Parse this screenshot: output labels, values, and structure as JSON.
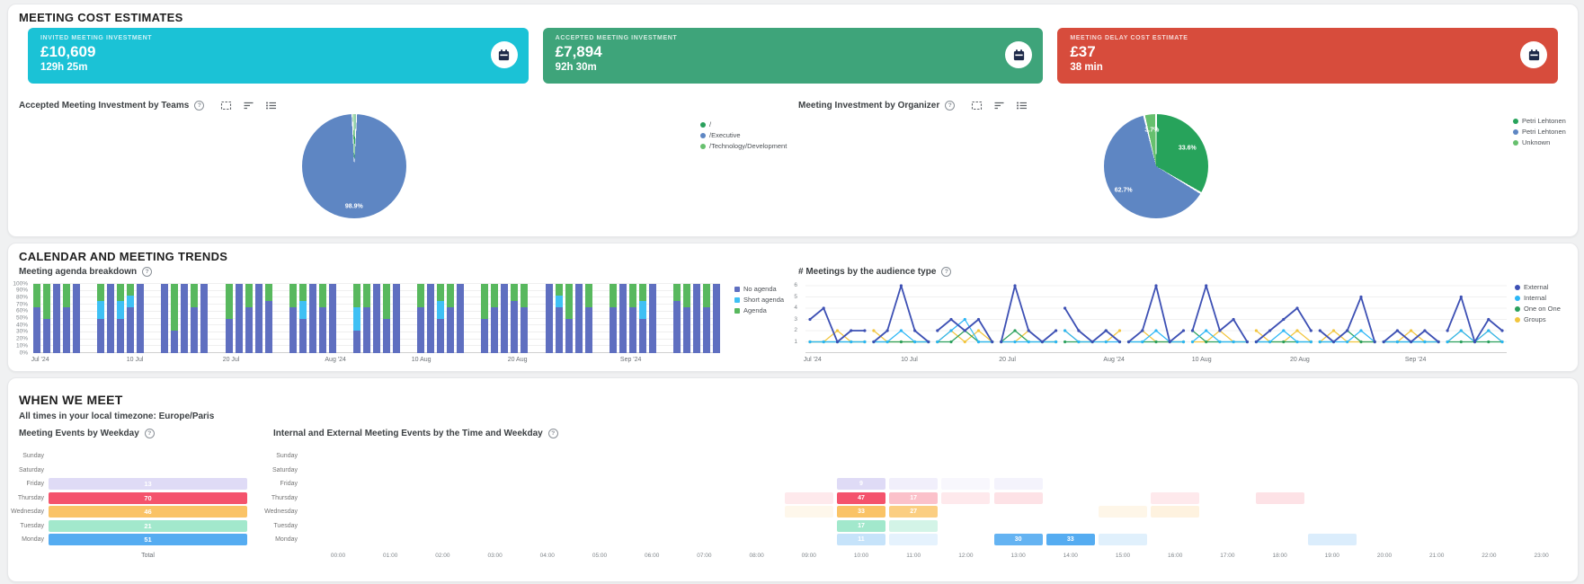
{
  "icons": {
    "help": "?"
  },
  "cost_section": {
    "title": "MEETING COST ESTIMATES",
    "cards": [
      {
        "label": "INVITED MEETING INVESTMENT",
        "value": "£10,609",
        "duration": "129h 25m",
        "color": "#1BC2D6",
        "icon": "calendar-icon"
      },
      {
        "label": "ACCEPTED MEETING INVESTMENT",
        "value": "£7,894",
        "duration": "92h 30m",
        "color": "#3EA47A",
        "icon": "calendar-icon"
      },
      {
        "label": "MEETING DELAY COST ESTIMATE",
        "value": "£37",
        "duration": "38 min",
        "color": "#D74C3C",
        "icon": "calendar-icon"
      }
    ]
  },
  "trends_section": {
    "title": "CALENDAR AND MEETING TRENDS"
  },
  "when_section": {
    "title": "WHEN WE MEET",
    "subtitle": "All times in your local timezone: Europe/Paris"
  },
  "chart_data": [
    {
      "type": "pie",
      "title": "Accepted Meeting Investment by Teams",
      "legend_position": "right",
      "slices": [
        {
          "label": "/",
          "value": 0.6,
          "color": "#2AA05C",
          "pct_label": null
        },
        {
          "label": "/Executive",
          "value": 98.9,
          "color": "#5E86C3",
          "pct_label": "98.9%"
        },
        {
          "label": "/Technology/Development",
          "value": 0.5,
          "color": "#67C06E",
          "pct_label": null
        }
      ]
    },
    {
      "type": "pie",
      "title": "Meeting Investment by Organizer",
      "legend_position": "right",
      "slices": [
        {
          "label": "Petri Lehtonen",
          "value": 33.6,
          "color": "#27A35B",
          "pct_label": "33.6%"
        },
        {
          "label": "Petri Lehtonen",
          "value": 62.7,
          "color": "#5E86C3",
          "pct_label": "62.7%"
        },
        {
          "label": "Unknown",
          "value": 3.7,
          "color": "#67C06E",
          "pct_label": "3.7%"
        }
      ]
    },
    {
      "type": "bar",
      "stacked": true,
      "percent": true,
      "title": "Meeting agenda breakdown",
      "ylim": [
        0,
        100
      ],
      "grid": true,
      "y_ticks": [
        "0%",
        "10%",
        "20%",
        "30%",
        "40%",
        "50%",
        "60%",
        "70%",
        "80%",
        "90%",
        "100%"
      ],
      "x_ticks": [
        "Jul '24",
        "10 Jul",
        "20 Jul",
        "Aug '24",
        "10 Aug",
        "20 Aug",
        "Sep '24"
      ],
      "x_tick_pos": [
        0.01,
        0.148,
        0.288,
        0.44,
        0.565,
        0.705,
        0.87
      ],
      "series_names": [
        "No agenda",
        "Short agenda",
        "Agenda"
      ],
      "series_colors": [
        "#5F6FC0",
        "#3FC0F4",
        "#58B85E"
      ],
      "weeks": [
        [
          [
            66,
            0,
            34
          ],
          [
            50,
            0,
            50
          ],
          [
            100,
            0,
            0
          ],
          [
            66,
            0,
            34
          ],
          [
            100,
            0,
            0
          ]
        ],
        [
          [
            50,
            25,
            25
          ],
          [
            100,
            0,
            0
          ],
          [
            50,
            25,
            25
          ],
          [
            66,
            17,
            17
          ],
          [
            100,
            0,
            0
          ]
        ],
        [
          [
            100,
            0,
            0
          ],
          [
            33,
            0,
            67
          ],
          [
            100,
            0,
            0
          ],
          [
            66,
            0,
            34
          ],
          [
            100,
            0,
            0
          ]
        ],
        [
          [
            50,
            0,
            50
          ],
          [
            100,
            0,
            0
          ],
          [
            66,
            0,
            34
          ],
          [
            100,
            0,
            0
          ],
          [
            75,
            0,
            25
          ]
        ],
        [
          [
            66,
            0,
            34
          ],
          [
            50,
            25,
            25
          ],
          [
            100,
            0,
            0
          ],
          [
            66,
            0,
            34
          ],
          [
            100,
            0,
            0
          ]
        ],
        [
          [
            33,
            33,
            34
          ],
          [
            66,
            0,
            34
          ],
          [
            100,
            0,
            0
          ],
          [
            50,
            0,
            50
          ],
          [
            100,
            0,
            0
          ]
        ],
        [
          [
            66,
            0,
            34
          ],
          [
            100,
            0,
            0
          ],
          [
            50,
            25,
            25
          ],
          [
            66,
            0,
            34
          ],
          [
            100,
            0,
            0
          ]
        ],
        [
          [
            50,
            0,
            50
          ],
          [
            66,
            0,
            34
          ],
          [
            100,
            0,
            0
          ],
          [
            75,
            0,
            25
          ],
          [
            66,
            0,
            34
          ]
        ],
        [
          [
            100,
            0,
            0
          ],
          [
            66,
            17,
            17
          ],
          [
            50,
            0,
            50
          ],
          [
            100,
            0,
            0
          ],
          [
            66,
            0,
            34
          ]
        ],
        [
          [
            66,
            0,
            34
          ],
          [
            100,
            0,
            0
          ],
          [
            66,
            0,
            34
          ],
          [
            50,
            25,
            25
          ],
          [
            100,
            0,
            0
          ]
        ],
        [
          [
            75,
            0,
            25
          ],
          [
            66,
            0,
            34
          ],
          [
            100,
            0,
            0
          ],
          [
            66,
            0,
            34
          ],
          [
            100,
            0,
            0
          ]
        ]
      ]
    },
    {
      "type": "line",
      "title": "# Meetings by the audience type",
      "ylim": [
        0,
        6
      ],
      "grid": true,
      "y_ticks": [
        1,
        2,
        3,
        4,
        5,
        6
      ],
      "x_ticks": [
        "Jul '24",
        "10 Jul",
        "20 Jul",
        "Aug '24",
        "10 Aug",
        "20 Aug",
        "Sep '24"
      ],
      "x_tick_pos": [
        0.01,
        0.148,
        0.288,
        0.44,
        0.565,
        0.705,
        0.87
      ],
      "series": [
        {
          "name": "External",
          "color": "#3D50B4",
          "weeks": [
            [
              3,
              4,
              1,
              2,
              2
            ],
            [
              1,
              2,
              6,
              2,
              1
            ],
            [
              2,
              3,
              2,
              3,
              1
            ],
            [
              1,
              6,
              2,
              1,
              2
            ],
            [
              4,
              2,
              1,
              2,
              1
            ],
            [
              1,
              2,
              6,
              1,
              2
            ],
            [
              2,
              6,
              2,
              3,
              1
            ],
            [
              1,
              2,
              3,
              4,
              2
            ],
            [
              2,
              1,
              2,
              5,
              1
            ],
            [
              1,
              2,
              1,
              2,
              1
            ],
            [
              2,
              5,
              1,
              3,
              2
            ]
          ]
        },
        {
          "name": "Internal",
          "color": "#2BB6F6",
          "weeks": [
            [
              1,
              1,
              1,
              1,
              1
            ],
            [
              1,
              1,
              2,
              1,
              1
            ],
            [
              1,
              2,
              3,
              1,
              1
            ],
            [
              1,
              1,
              1,
              1,
              1
            ],
            [
              2,
              1,
              1,
              1,
              1
            ],
            [
              1,
              1,
              2,
              1,
              1
            ],
            [
              1,
              2,
              1,
              1,
              1
            ],
            [
              1,
              1,
              2,
              1,
              1
            ],
            [
              1,
              1,
              1,
              2,
              1
            ],
            [
              1,
              1,
              1,
              1,
              1
            ],
            [
              1,
              2,
              1,
              2,
              1
            ]
          ]
        },
        {
          "name": "One on One",
          "color": "#2AA05C",
          "weeks": [
            [
              1,
              1,
              1,
              1,
              1
            ],
            [
              1,
              1,
              1,
              1,
              1
            ],
            [
              1,
              1,
              2,
              1,
              1
            ],
            [
              1,
              2,
              1,
              1,
              1
            ],
            [
              1,
              1,
              1,
              2,
              1
            ],
            [
              1,
              1,
              1,
              1,
              1
            ],
            [
              2,
              1,
              1,
              1,
              1
            ],
            [
              1,
              1,
              1,
              1,
              1
            ],
            [
              1,
              1,
              2,
              1,
              1
            ],
            [
              1,
              1,
              1,
              1,
              1
            ],
            [
              1,
              1,
              1,
              1,
              1
            ]
          ]
        },
        {
          "name": "Groups",
          "color": "#F2C53D",
          "weeks": [
            [
              1,
              1,
              2,
              1,
              1
            ],
            [
              2,
              1,
              1,
              1,
              1
            ],
            [
              1,
              2,
              1,
              2,
              1
            ],
            [
              1,
              1,
              2,
              1,
              1
            ],
            [
              2,
              1,
              1,
              1,
              2
            ],
            [
              1,
              2,
              1,
              1,
              1
            ],
            [
              1,
              1,
              2,
              1,
              1
            ],
            [
              2,
              1,
              1,
              2,
              1
            ],
            [
              1,
              2,
              1,
              1,
              1
            ],
            [
              1,
              1,
              2,
              1,
              1
            ],
            [
              1,
              2,
              1,
              2,
              1
            ]
          ]
        }
      ]
    },
    {
      "type": "heatmap",
      "title": "Meeting Events by Weekday",
      "rows": [
        "Sunday",
        "Saturday",
        "Friday",
        "Thursday",
        "Wednesday",
        "Tuesday",
        "Monday"
      ],
      "x_ticks": [
        "Total"
      ],
      "row_colors": {
        "Monday": "#55ACF1",
        "Tuesday": "#A2E8CC",
        "Wednesday": "#FAC366",
        "Thursday": "#F4536C",
        "Friday": "#DFDBF6"
      },
      "values": {
        "Monday": 51,
        "Tuesday": 21,
        "Wednesday": 46,
        "Thursday": 70,
        "Friday": 13
      }
    },
    {
      "type": "heatmap",
      "title": "Internal and External Meeting Events by the Time and Weekday",
      "rows": [
        "Sunday",
        "Saturday",
        "Friday",
        "Thursday",
        "Wednesday",
        "Tuesday",
        "Monday"
      ],
      "columns": [
        "00:00",
        "01:00",
        "02:00",
        "03:00",
        "04:00",
        "05:00",
        "06:00",
        "07:00",
        "08:00",
        "09:00",
        "10:00",
        "11:00",
        "12:00",
        "13:00",
        "14:00",
        "15:00",
        "16:00",
        "17:00",
        "18:00",
        "19:00",
        "20:00",
        "21:00",
        "22:00",
        "23:00"
      ],
      "row_colors": {
        "Monday": "#55ACF1",
        "Tuesday": "#A2E8CC",
        "Wednesday": "#FAC366",
        "Thursday": "#F4536C",
        "Friday": "#DFDBF6"
      },
      "cells": [
        {
          "day": "Friday",
          "hour": "10:00",
          "value": 9,
          "label": true
        },
        {
          "day": "Friday",
          "hour": "11:00",
          "value": 4
        },
        {
          "day": "Friday",
          "hour": "12:00",
          "value": 2
        },
        {
          "day": "Friday",
          "hour": "13:00",
          "value": 3
        },
        {
          "day": "Thursday",
          "hour": "09:00",
          "value": 5
        },
        {
          "day": "Thursday",
          "hour": "10:00",
          "value": 47,
          "label": true
        },
        {
          "day": "Thursday",
          "hour": "11:00",
          "value": 17,
          "label": true
        },
        {
          "day": "Thursday",
          "hour": "12:00",
          "value": 6
        },
        {
          "day": "Thursday",
          "hour": "13:00",
          "value": 8
        },
        {
          "day": "Thursday",
          "hour": "16:00",
          "value": 6
        },
        {
          "day": "Thursday",
          "hour": "18:00",
          "value": 8
        },
        {
          "day": "Wednesday",
          "hour": "09:00",
          "value": 4
        },
        {
          "day": "Wednesday",
          "hour": "10:00",
          "value": 33,
          "label": true
        },
        {
          "day": "Wednesday",
          "hour": "11:00",
          "value": 27,
          "label": true
        },
        {
          "day": "Wednesday",
          "hour": "15:00",
          "value": 5
        },
        {
          "day": "Wednesday",
          "hour": "16:00",
          "value": 7
        },
        {
          "day": "Tuesday",
          "hour": "10:00",
          "value": 17,
          "label": true
        },
        {
          "day": "Tuesday",
          "hour": "11:00",
          "value": 8
        },
        {
          "day": "Monday",
          "hour": "10:00",
          "value": 11,
          "label": true
        },
        {
          "day": "Monday",
          "hour": "11:00",
          "value": 5
        },
        {
          "day": "Monday",
          "hour": "13:00",
          "value": 30,
          "label": true
        },
        {
          "day": "Monday",
          "hour": "14:00",
          "value": 33,
          "label": true
        },
        {
          "day": "Monday",
          "hour": "15:00",
          "value": 6
        },
        {
          "day": "Monday",
          "hour": "19:00",
          "value": 7
        }
      ]
    }
  ]
}
